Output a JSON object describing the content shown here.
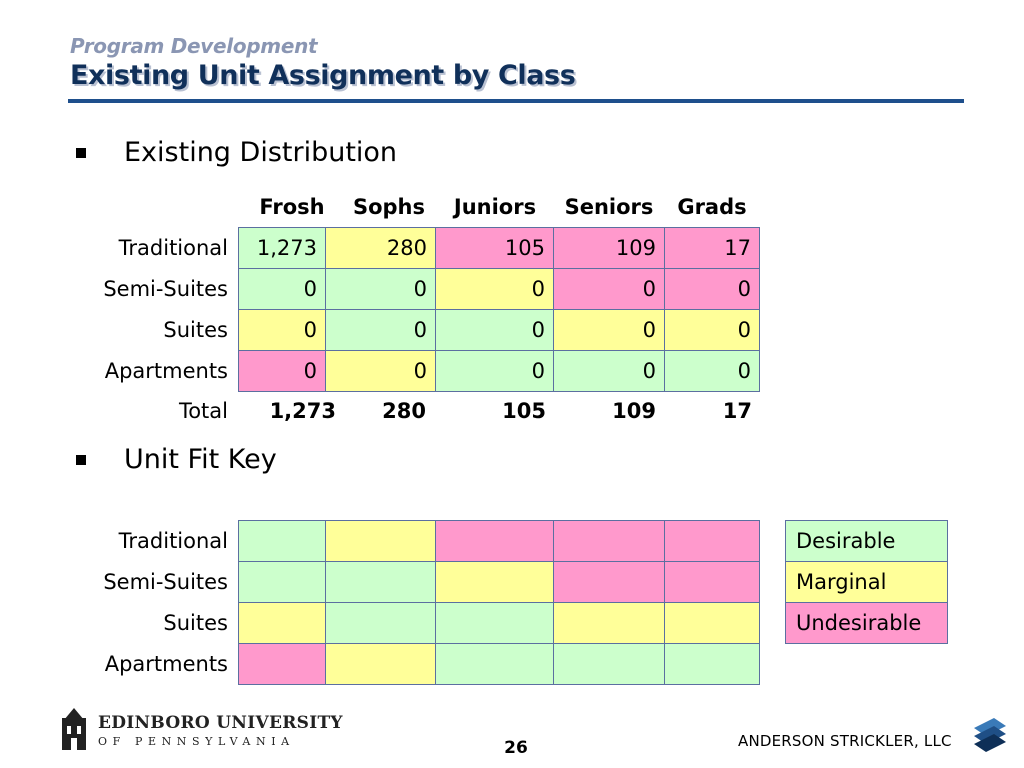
{
  "header": {
    "kicker": "Program Development",
    "title": "Existing Unit Assignment by Class"
  },
  "bullets": [
    "Existing Distribution",
    "Unit Fit Key"
  ],
  "columns": [
    "Frosh",
    "Sophs",
    "Juniors",
    "Seniors",
    "Grads"
  ],
  "rows": [
    "Traditional",
    "Semi-Suites",
    "Suites",
    "Apartments"
  ],
  "distribution": [
    [
      "1,273",
      "280",
      "105",
      "109",
      "17"
    ],
    [
      "0",
      "0",
      "0",
      "0",
      "0"
    ],
    [
      "0",
      "0",
      "0",
      "0",
      "0"
    ],
    [
      "0",
      "0",
      "0",
      "0",
      "0"
    ]
  ],
  "fit": [
    [
      "g",
      "y",
      "p",
      "p",
      "p"
    ],
    [
      "g",
      "g",
      "y",
      "p",
      "p"
    ],
    [
      "y",
      "g",
      "g",
      "y",
      "y"
    ],
    [
      "p",
      "y",
      "g",
      "g",
      "g"
    ]
  ],
  "total_label": "Total",
  "totals": [
    "1,273",
    "280",
    "105",
    "109",
    "17"
  ],
  "legend": [
    {
      "label": "Desirable",
      "color": "#ccffcc"
    },
    {
      "label": "Marginal",
      "color": "#ffff99"
    },
    {
      "label": "Undesirable",
      "color": "#ff99cc"
    }
  ],
  "colors": {
    "desirable": "#ccffcc",
    "marginal": "#ffff99",
    "undesirable": "#ff99cc",
    "title": "#10305a",
    "rule": "#1e4f8c"
  },
  "footer": {
    "university": "EDINBORO UNIVERSITY",
    "university_sub": "OF PENNSYLVANIA",
    "page": "26",
    "consultant": "ANDERSON STRICKLER, LLC"
  }
}
